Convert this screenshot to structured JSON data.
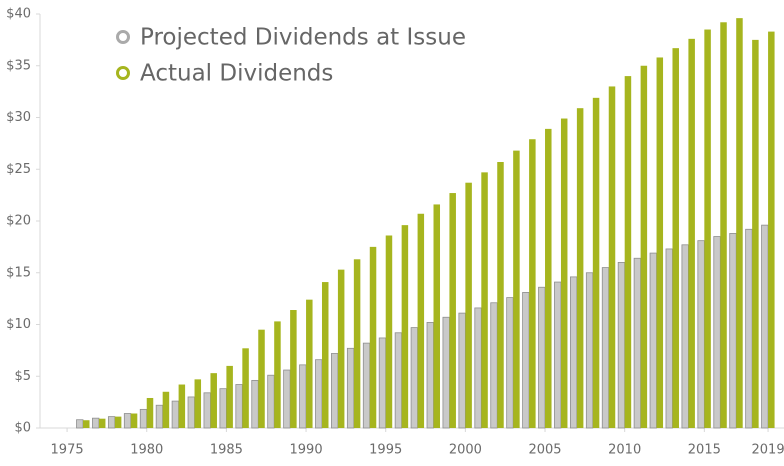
{
  "chart_data": {
    "type": "bar",
    "x": [
      1976,
      1977,
      1978,
      1979,
      1980,
      1981,
      1982,
      1983,
      1984,
      1985,
      1986,
      1987,
      1988,
      1989,
      1990,
      1991,
      1992,
      1993,
      1994,
      1995,
      1996,
      1997,
      1998,
      1999,
      2000,
      2001,
      2002,
      2003,
      2004,
      2005,
      2006,
      2007,
      2008,
      2009,
      2010,
      2011,
      2012,
      2013,
      2014,
      2015,
      2016,
      2017,
      2018,
      2019
    ],
    "series": [
      {
        "name": "Projected Dividends at Issue",
        "color": "#c9c9c9",
        "values": [
          0.8,
          0.95,
          1.1,
          1.4,
          1.8,
          2.2,
          2.6,
          3.0,
          3.4,
          3.8,
          4.2,
          4.6,
          5.1,
          5.6,
          6.1,
          6.6,
          7.2,
          7.7,
          8.2,
          8.7,
          9.2,
          9.7,
          10.2,
          10.7,
          11.1,
          11.6,
          12.1,
          12.6,
          13.1,
          13.6,
          14.1,
          14.6,
          15.0,
          15.5,
          16.0,
          16.4,
          16.9,
          17.3,
          17.7,
          18.1,
          18.5,
          18.8,
          19.2,
          19.6
        ]
      },
      {
        "name": "Actual Dividends",
        "color": "#a6b51e",
        "values": [
          0.75,
          0.9,
          1.1,
          1.4,
          2.9,
          3.5,
          4.2,
          4.7,
          5.3,
          6.0,
          7.7,
          9.5,
          10.3,
          11.4,
          12.4,
          14.1,
          15.3,
          16.3,
          17.5,
          18.6,
          19.6,
          20.7,
          21.6,
          22.7,
          23.7,
          24.7,
          25.7,
          26.8,
          27.9,
          28.9,
          29.9,
          30.9,
          31.9,
          33.0,
          34.0,
          35.0,
          35.8,
          36.7,
          37.6,
          38.5,
          39.2,
          39.6,
          37.5,
          38.3
        ]
      }
    ],
    "xlim": [
      1973.3,
      2020
    ],
    "xticks": [
      1975,
      1980,
      1985,
      1990,
      1995,
      2000,
      2005,
      2010,
      2015,
      2019
    ],
    "ylim": [
      0,
      40
    ],
    "yticks": [
      {
        "value": 0,
        "label": "$0"
      },
      {
        "value": 5,
        "label": "$5"
      },
      {
        "value": 10,
        "label": "$10"
      },
      {
        "value": 15,
        "label": "$15"
      },
      {
        "value": 20,
        "label": "$20"
      },
      {
        "value": 25,
        "label": "$25"
      },
      {
        "value": 30,
        "label": "$30"
      },
      {
        "value": 35,
        "label": "$35"
      },
      {
        "value": 40,
        "label": "$40"
      }
    ],
    "grid": false
  }
}
